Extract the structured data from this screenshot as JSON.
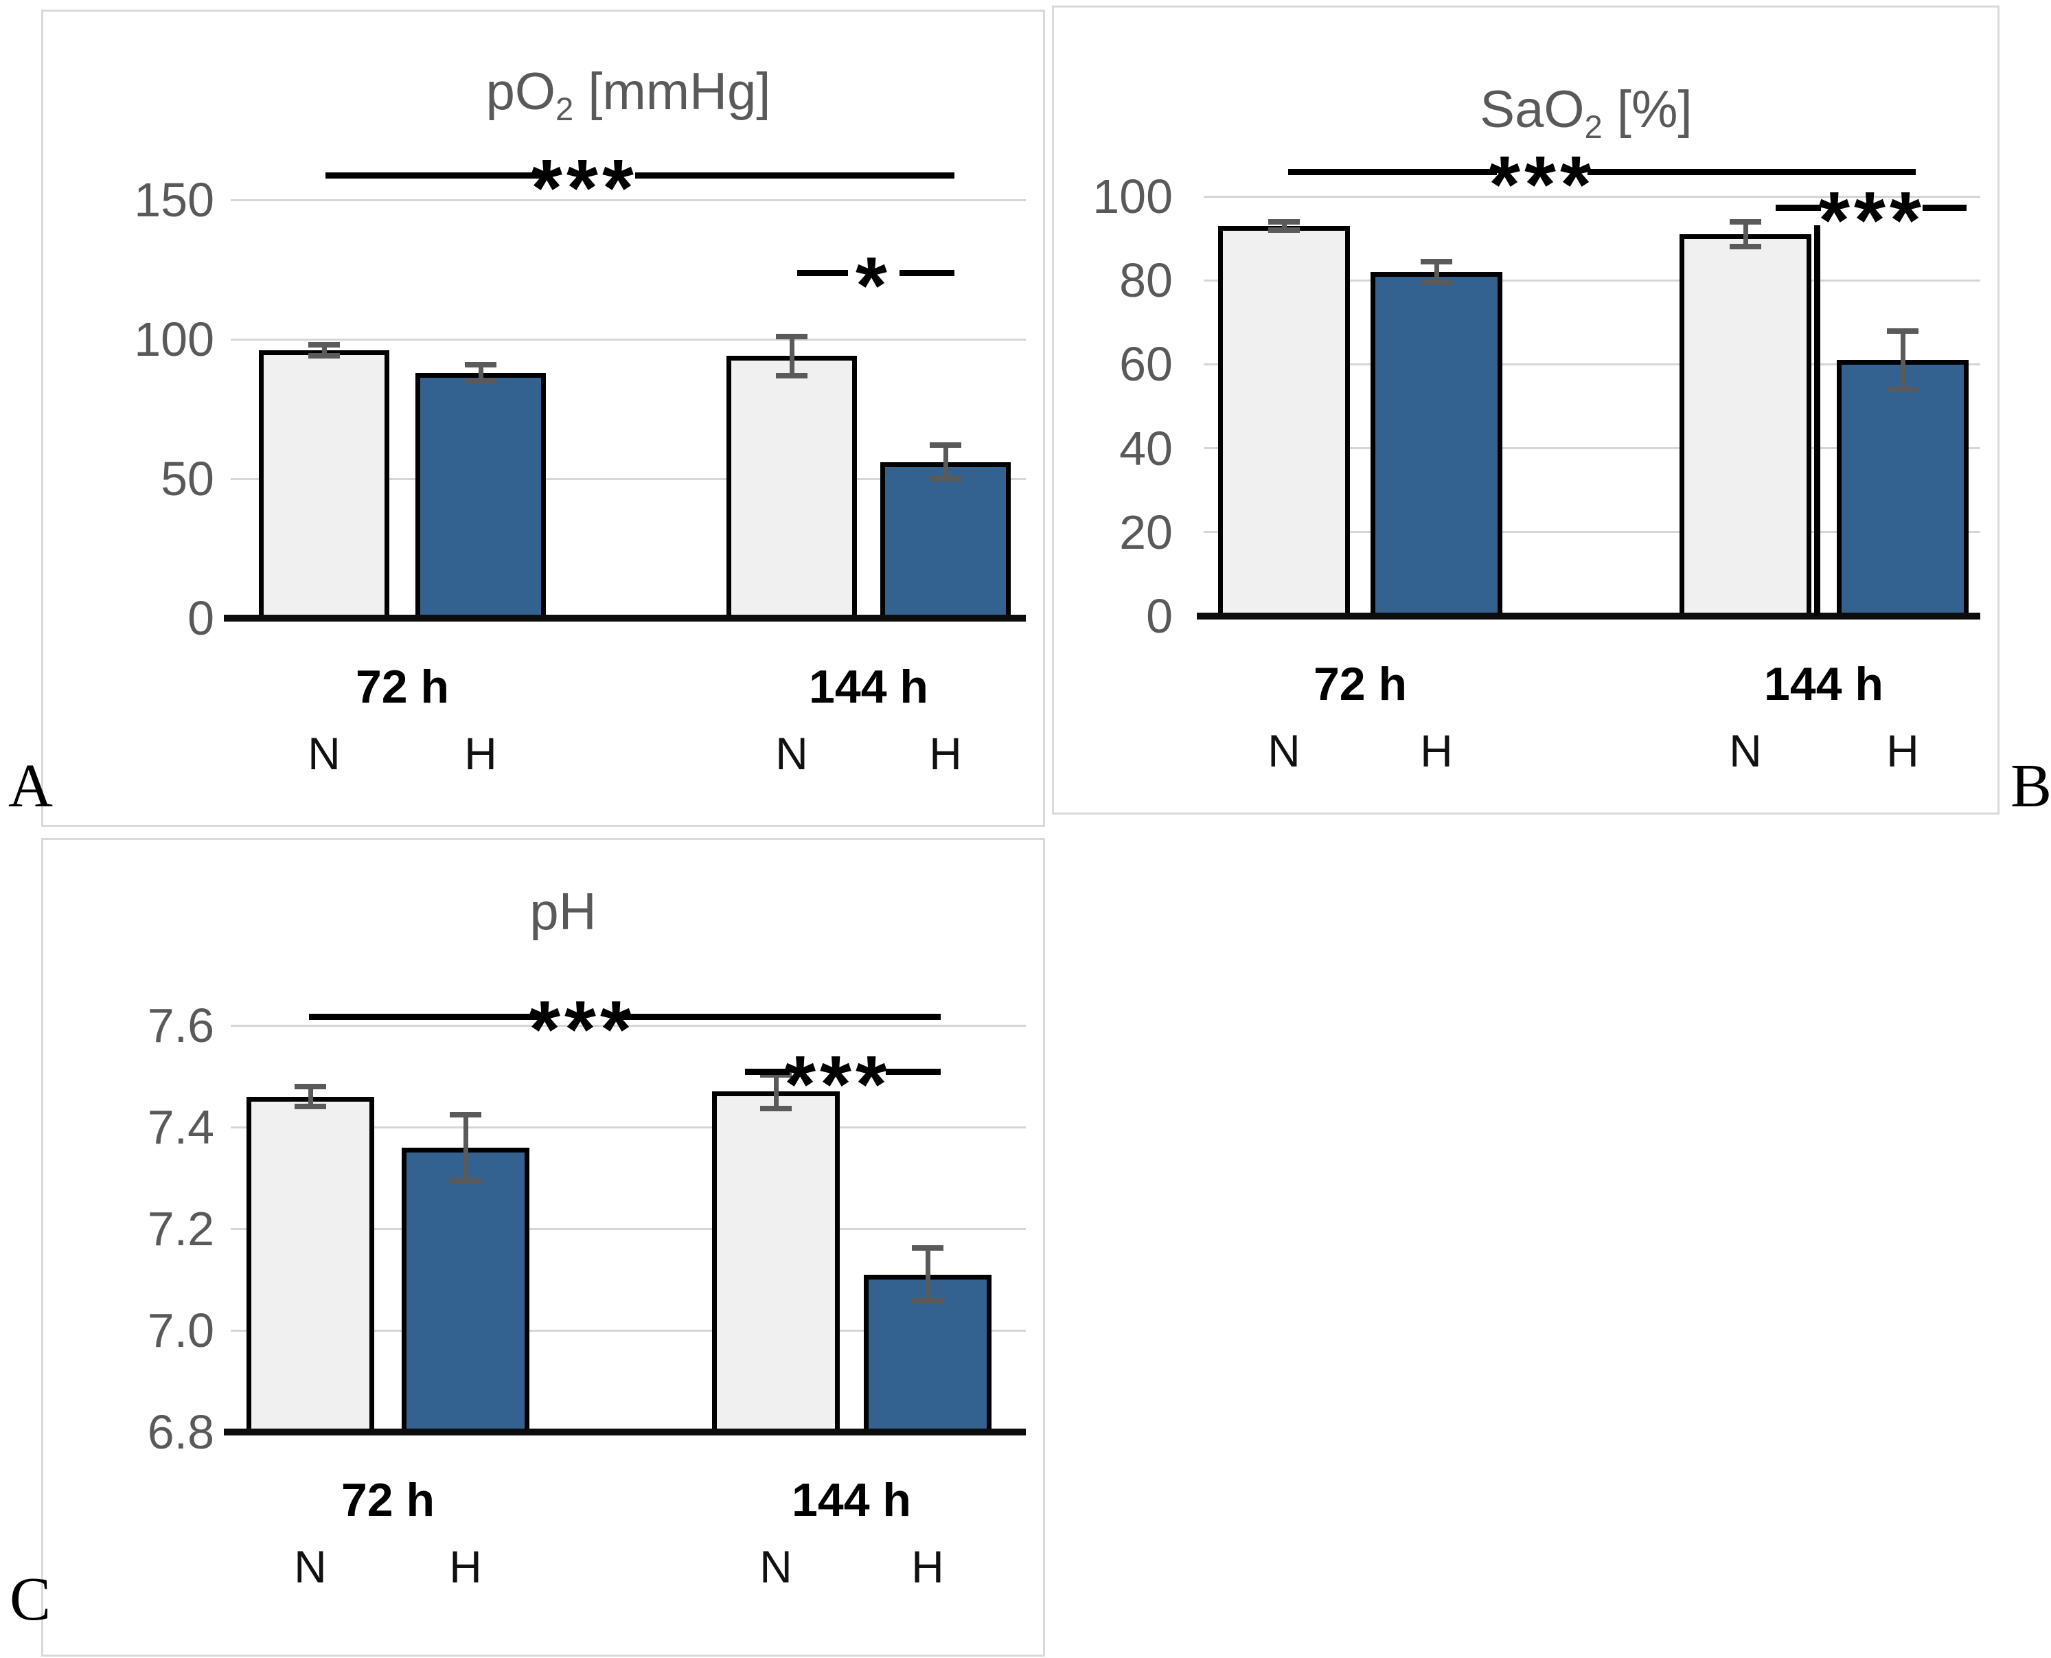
{
  "colors": {
    "bar_normoxia_fill": "#F0F0F0",
    "bar_hypoxia_fill": "#336190",
    "bar_border": "#000000",
    "error_bar": "#5A5A5A",
    "gridline": "#D6D6D6",
    "axis_line": "#0D0D0D",
    "tick_text": "#595959",
    "title_text": "#595959",
    "panel_border": "#D9D9D9",
    "significance": "#000000"
  },
  "chart_data": [
    {
      "panel_label": "A",
      "type": "bar",
      "title": "pO2 [mmHg]",
      "title_parts": {
        "pre": "pO",
        "sub": "2",
        "post": " [mmHg]"
      },
      "ylim": [
        0,
        165
      ],
      "y_ticks": [
        0,
        50,
        100,
        150
      ],
      "y_tick_labels": [
        "0",
        "50",
        "100",
        "150"
      ],
      "grid": true,
      "legend_position": "none",
      "group_labels": [
        "72 h",
        "144 h"
      ],
      "condition_labels": [
        "N",
        "H",
        "N",
        "H"
      ],
      "bars": [
        {
          "group": "72 h",
          "condition": "N",
          "value": 96,
          "error": 2
        },
        {
          "group": "72 h",
          "condition": "H",
          "value": 88,
          "error": 3
        },
        {
          "group": "144 h",
          "condition": "N",
          "value": 94,
          "error": 7
        },
        {
          "group": "144 h",
          "condition": "H",
          "value": 56,
          "error": 6
        }
      ],
      "significance": [
        {
          "label": "***",
          "between": "72 h vs 144 h (overall)"
        },
        {
          "label": "*",
          "between": "144 h N vs 144 h H"
        }
      ]
    },
    {
      "panel_label": "B",
      "type": "bar",
      "title": "SaO2 [%]",
      "title_parts": {
        "pre": "SaO",
        "sub": "2",
        "post": " [%]"
      },
      "ylim": [
        0,
        110
      ],
      "y_ticks": [
        0,
        20,
        40,
        60,
        80,
        100
      ],
      "y_tick_labels": [
        "0",
        "20",
        "40",
        "60",
        "80",
        "100"
      ],
      "grid": true,
      "legend_position": "none",
      "group_labels": [
        "72 h",
        "144 h"
      ],
      "condition_labels": [
        "N",
        "H",
        "N",
        "H"
      ],
      "bars": [
        {
          "group": "72 h",
          "condition": "N",
          "value": 93,
          "error": 1
        },
        {
          "group": "72 h",
          "condition": "H",
          "value": 82,
          "error": 2.5
        },
        {
          "group": "144 h",
          "condition": "N",
          "value": 91,
          "error": 3
        },
        {
          "group": "144 h",
          "condition": "H",
          "value": 61,
          "error": 7
        }
      ],
      "significance": [
        {
          "label": "***",
          "between": "72 h vs 144 h (overall)"
        },
        {
          "label": "***",
          "between": "144 h N vs 144 h H"
        }
      ]
    },
    {
      "panel_label": "C",
      "type": "bar",
      "title": "pH",
      "title_parts": {
        "pre": "pH",
        "sub": "",
        "post": ""
      },
      "ylim": [
        6.8,
        7.68
      ],
      "y_ticks": [
        6.8,
        7.0,
        7.2,
        7.4,
        7.6
      ],
      "y_tick_labels": [
        "6.8",
        "7.0",
        "7.2",
        "7.4",
        "7.6"
      ],
      "grid": true,
      "legend_position": "none",
      "group_labels": [
        "72 h",
        "144 h"
      ],
      "condition_labels": [
        "N",
        "H",
        "N",
        "H"
      ],
      "bars": [
        {
          "group": "72 h",
          "condition": "N",
          "value": 7.46,
          "error": 0.02
        },
        {
          "group": "72 h",
          "condition": "H",
          "value": 7.36,
          "error": 0.065
        },
        {
          "group": "144 h",
          "condition": "N",
          "value": 7.47,
          "error": 0.033
        },
        {
          "group": "144 h",
          "condition": "H",
          "value": 7.11,
          "error": 0.052
        }
      ],
      "significance": [
        {
          "label": "***",
          "between": "72 h vs 144 h (overall)"
        },
        {
          "label": "***",
          "between": "144 h N vs 144 h H"
        }
      ]
    }
  ]
}
